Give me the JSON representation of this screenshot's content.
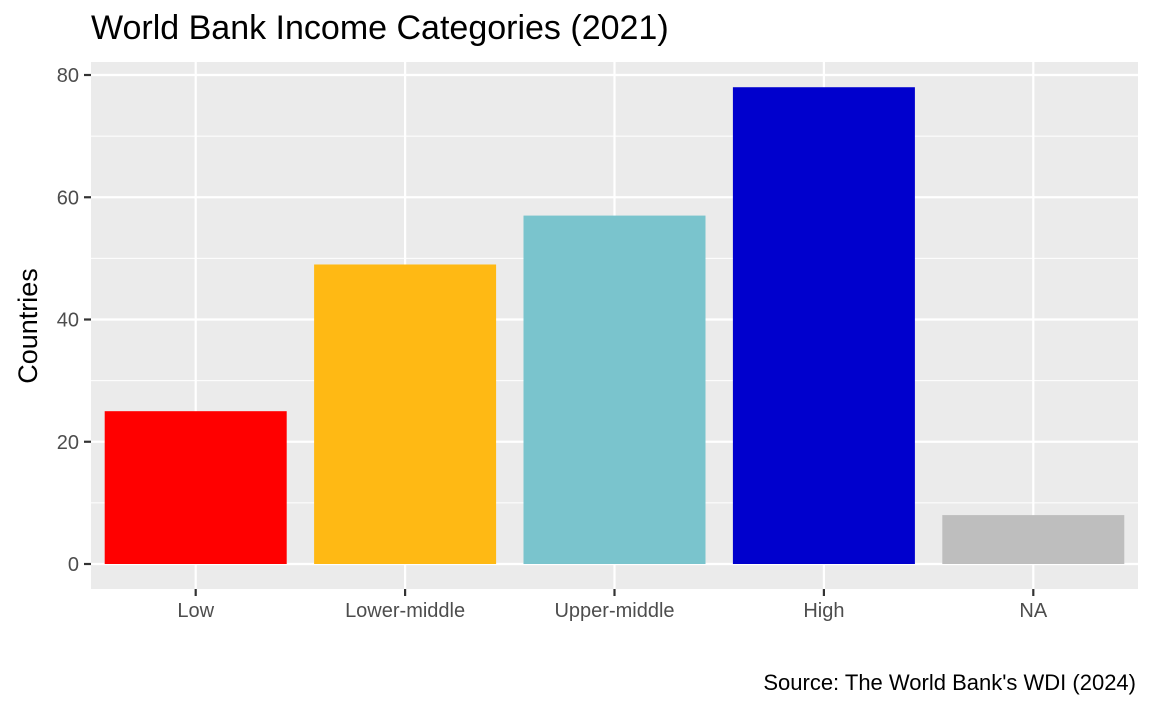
{
  "chart_data": {
    "type": "bar",
    "title": "World Bank Income Categories (2021)",
    "caption": "Source: The World Bank's WDI (2024)",
    "xlabel": "",
    "ylabel": "Countries",
    "categories": [
      "Low",
      "Lower-middle",
      "Upper-middle",
      "High",
      "NA"
    ],
    "values": [
      25,
      49,
      57,
      78,
      8
    ],
    "colors": [
      "#ff0000",
      "#ffb914",
      "#7ac4cd",
      "#0000cd",
      "#bebebe"
    ],
    "ylim": [
      0,
      80
    ],
    "yticks": [
      0,
      20,
      40,
      60,
      80
    ],
    "grid": true,
    "legend": "none",
    "panel_color": "#ebebeb",
    "grid_color": "#ffffff"
  }
}
